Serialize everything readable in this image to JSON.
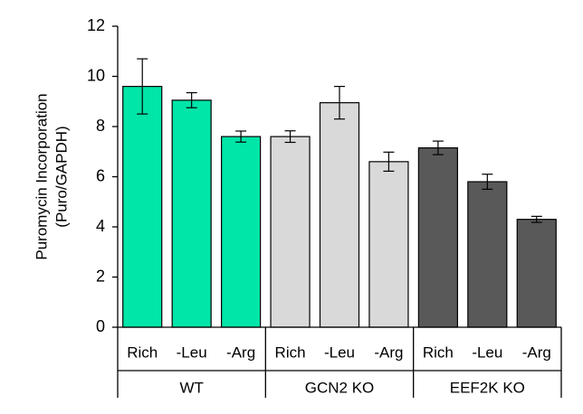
{
  "chart_data": {
    "type": "bar",
    "title": "",
    "ylabel_lines": [
      "Puromycin Incorporation",
      "(Puro/GAPDH)"
    ],
    "xlabel": "",
    "ylim": [
      0,
      12
    ],
    "yticks": [
      0,
      2,
      4,
      6,
      8,
      10,
      12
    ],
    "grid": false,
    "legend": "none",
    "groups": [
      {
        "name": "WT",
        "color": "#00E5A8",
        "bars": [
          {
            "category": "Rich",
            "value": 9.6,
            "error": 1.1
          },
          {
            "category": "-Leu",
            "value": 9.05,
            "error": 0.3
          },
          {
            "category": "-Arg",
            "value": 7.6,
            "error": 0.22
          }
        ]
      },
      {
        "name": "GCN2 KO",
        "color": "#D9D9D9",
        "bars": [
          {
            "category": "Rich",
            "value": 7.6,
            "error": 0.23
          },
          {
            "category": "-Leu",
            "value": 8.95,
            "error": 0.65
          },
          {
            "category": "-Arg",
            "value": 6.6,
            "error": 0.38
          }
        ]
      },
      {
        "name": "EEF2K KO",
        "color": "#595959",
        "bars": [
          {
            "category": "Rich",
            "value": 7.15,
            "error": 0.27
          },
          {
            "category": "-Leu",
            "value": 5.8,
            "error": 0.3
          },
          {
            "category": "-Arg",
            "value": 4.3,
            "error": 0.12
          }
        ]
      }
    ]
  }
}
